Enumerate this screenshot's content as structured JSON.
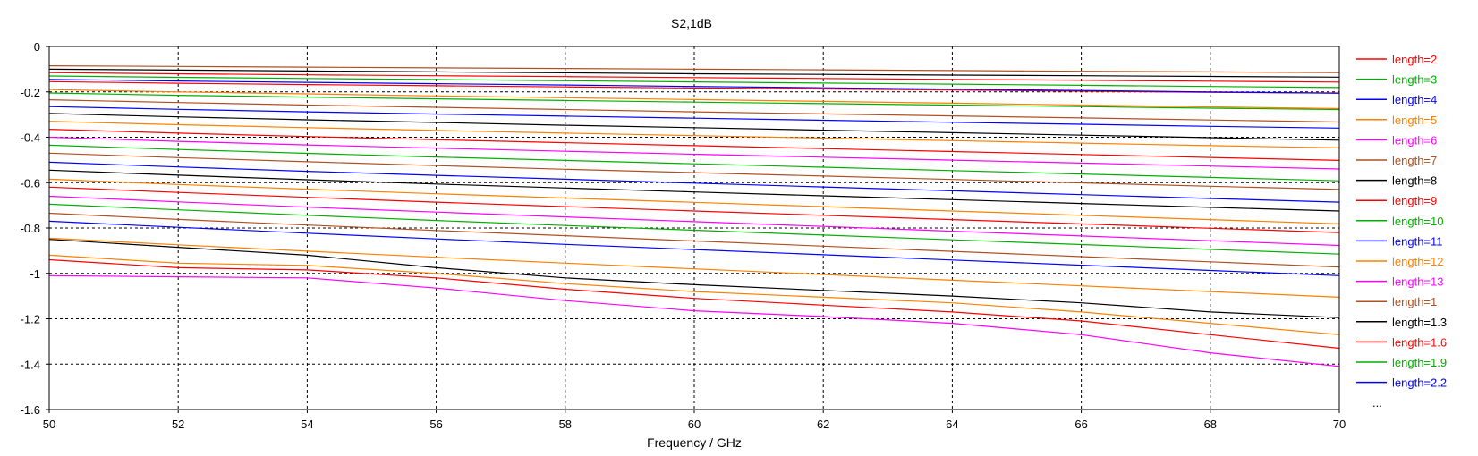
{
  "chart_data": {
    "type": "line",
    "title": "S2,1dB",
    "xlabel": "Frequency / GHz",
    "ylabel": "",
    "xlim": [
      50,
      70
    ],
    "ylim": [
      -1.6,
      0
    ],
    "x_ticks": [
      "50",
      "52",
      "54",
      "56",
      "58",
      "60",
      "62",
      "64",
      "66",
      "68",
      "70"
    ],
    "y_ticks": [
      "0",
      "-0.2",
      "-0.4",
      "-0.6",
      "-0.8",
      "-1",
      "-1.2",
      "-1.4",
      "-1.6"
    ],
    "grid": true,
    "legend_position": "right",
    "legend_more": "...",
    "x": [
      50,
      52,
      54,
      56,
      58,
      60,
      62,
      64,
      66,
      68,
      70
    ],
    "series": [
      {
        "name": "length=2",
        "color": "#ff0000",
        "values": [
          -0.155,
          -0.162,
          -0.168,
          -0.173,
          -0.178,
          -0.183,
          -0.187,
          -0.192,
          -0.197,
          -0.202,
          -0.205
        ]
      },
      {
        "name": "length=3",
        "color": "#00b000",
        "values": [
          -0.205,
          -0.215,
          -0.223,
          -0.231,
          -0.238,
          -0.245,
          -0.252,
          -0.258,
          -0.265,
          -0.272,
          -0.278
        ]
      },
      {
        "name": "length=4",
        "color": "#0000ff",
        "values": [
          -0.265,
          -0.277,
          -0.288,
          -0.298,
          -0.307,
          -0.316,
          -0.325,
          -0.334,
          -0.343,
          -0.352,
          -0.36
        ]
      },
      {
        "name": "length=5",
        "color": "#ff8000",
        "values": [
          -0.33,
          -0.345,
          -0.358,
          -0.37,
          -0.382,
          -0.393,
          -0.404,
          -0.415,
          -0.426,
          -0.437,
          -0.447
        ]
      },
      {
        "name": "length=6",
        "color": "#ff00ff",
        "values": [
          -0.4,
          -0.418,
          -0.434,
          -0.448,
          -0.462,
          -0.475,
          -0.488,
          -0.501,
          -0.514,
          -0.527,
          -0.54
        ]
      },
      {
        "name": "length=7",
        "color": "#b05020",
        "values": [
          -0.47,
          -0.49,
          -0.508,
          -0.525,
          -0.541,
          -0.556,
          -0.571,
          -0.586,
          -0.601,
          -0.616,
          -0.63
        ]
      },
      {
        "name": "length=8",
        "color": "#000000",
        "values": [
          -0.545,
          -0.567,
          -0.587,
          -0.606,
          -0.624,
          -0.641,
          -0.658,
          -0.675,
          -0.692,
          -0.709,
          -0.725
        ]
      },
      {
        "name": "length=9",
        "color": "#ff0000",
        "values": [
          -0.62,
          -0.643,
          -0.665,
          -0.686,
          -0.706,
          -0.725,
          -0.744,
          -0.763,
          -0.782,
          -0.801,
          -0.82
        ]
      },
      {
        "name": "length=10",
        "color": "#00b000",
        "values": [
          -0.695,
          -0.72,
          -0.744,
          -0.767,
          -0.789,
          -0.81,
          -0.831,
          -0.852,
          -0.873,
          -0.894,
          -0.915
        ]
      },
      {
        "name": "length=11",
        "color": "#0000ff",
        "values": [
          -0.77,
          -0.797,
          -0.823,
          -0.848,
          -0.872,
          -0.895,
          -0.918,
          -0.941,
          -0.964,
          -0.987,
          -1.01
        ]
      },
      {
        "name": "length=12",
        "color": "#ff8000",
        "values": [
          -0.845,
          -0.874,
          -0.902,
          -0.929,
          -0.955,
          -0.98,
          -1.005,
          -1.03,
          -1.055,
          -1.08,
          -1.105
        ]
      },
      {
        "name": "length=13",
        "color": "#ff00ff",
        "values": [
          -1.01,
          -1.015,
          -1.02,
          -1.065,
          -1.12,
          -1.165,
          -1.19,
          -1.22,
          -1.27,
          -1.35,
          -1.41
        ]
      },
      {
        "name": "length=1",
        "color": "#b05020",
        "values": [
          -0.085,
          -0.088,
          -0.091,
          -0.094,
          -0.097,
          -0.1,
          -0.103,
          -0.106,
          -0.109,
          -0.112,
          -0.115
        ]
      },
      {
        "name": "length=1.3",
        "color": "#000000",
        "values": [
          -0.1,
          -0.104,
          -0.108,
          -0.112,
          -0.116,
          -0.12,
          -0.123,
          -0.126,
          -0.129,
          -0.132,
          -0.135
        ]
      },
      {
        "name": "length=1.6",
        "color": "#ff0000",
        "values": [
          -0.115,
          -0.12,
          -0.125,
          -0.129,
          -0.133,
          -0.137,
          -0.141,
          -0.145,
          -0.149,
          -0.153,
          -0.157
        ]
      },
      {
        "name": "length=1.9",
        "color": "#00b000",
        "values": [
          -0.13,
          -0.136,
          -0.141,
          -0.146,
          -0.151,
          -0.156,
          -0.161,
          -0.166,
          -0.171,
          -0.176,
          -0.181
        ]
      },
      {
        "name": "length=2.2",
        "color": "#0000ff",
        "values": [
          -0.145,
          -0.152,
          -0.158,
          -0.164,
          -0.17,
          -0.176,
          -0.182,
          -0.188,
          -0.194,
          -0.2,
          -0.206
        ]
      },
      {
        "name": "",
        "color": "#ff8000",
        "values": [
          -0.19,
          -0.2,
          -0.209,
          -0.218,
          -0.226,
          -0.234,
          -0.242,
          -0.25,
          -0.258,
          -0.266,
          -0.274
        ]
      },
      {
        "name": "",
        "color": "#b05020",
        "values": [
          -0.235,
          -0.247,
          -0.258,
          -0.268,
          -0.278,
          -0.288,
          -0.297,
          -0.306,
          -0.315,
          -0.324,
          -0.333
        ]
      },
      {
        "name": "",
        "color": "#000000",
        "values": [
          -0.295,
          -0.31,
          -0.323,
          -0.335,
          -0.347,
          -0.358,
          -0.369,
          -0.38,
          -0.391,
          -0.402,
          -0.413
        ]
      },
      {
        "name": "",
        "color": "#ff0000",
        "values": [
          -0.365,
          -0.382,
          -0.397,
          -0.411,
          -0.424,
          -0.437,
          -0.45,
          -0.463,
          -0.476,
          -0.489,
          -0.502
        ]
      },
      {
        "name": "",
        "color": "#00b000",
        "values": [
          -0.435,
          -0.454,
          -0.471,
          -0.487,
          -0.502,
          -0.517,
          -0.532,
          -0.547,
          -0.562,
          -0.577,
          -0.592
        ]
      },
      {
        "name": "",
        "color": "#0000ff",
        "values": [
          -0.51,
          -0.531,
          -0.55,
          -0.568,
          -0.585,
          -0.602,
          -0.619,
          -0.636,
          -0.653,
          -0.67,
          -0.686
        ]
      },
      {
        "name": "",
        "color": "#ff8000",
        "values": [
          -0.585,
          -0.608,
          -0.629,
          -0.649,
          -0.668,
          -0.687,
          -0.706,
          -0.725,
          -0.744,
          -0.763,
          -0.782
        ]
      },
      {
        "name": "",
        "color": "#ff00ff",
        "values": [
          -0.66,
          -0.685,
          -0.708,
          -0.73,
          -0.751,
          -0.772,
          -0.793,
          -0.814,
          -0.835,
          -0.856,
          -0.877
        ]
      },
      {
        "name": "",
        "color": "#b05020",
        "values": [
          -0.735,
          -0.762,
          -0.787,
          -0.811,
          -0.834,
          -0.857,
          -0.88,
          -0.903,
          -0.926,
          -0.949,
          -0.972
        ]
      },
      {
        "name": "",
        "color": "#000000",
        "values": [
          -0.85,
          -0.885,
          -0.92,
          -0.975,
          -1.02,
          -1.05,
          -1.075,
          -1.1,
          -1.13,
          -1.17,
          -1.195
        ]
      },
      {
        "name": "",
        "color": "#ff0000",
        "values": [
          -0.94,
          -0.975,
          -0.985,
          -1.02,
          -1.07,
          -1.11,
          -1.14,
          -1.17,
          -1.21,
          -1.27,
          -1.33
        ]
      },
      {
        "name": "",
        "color": "#ff8000",
        "values": [
          -0.92,
          -0.955,
          -0.965,
          -1.0,
          -1.045,
          -1.08,
          -1.105,
          -1.13,
          -1.17,
          -1.22,
          -1.27
        ]
      }
    ]
  }
}
